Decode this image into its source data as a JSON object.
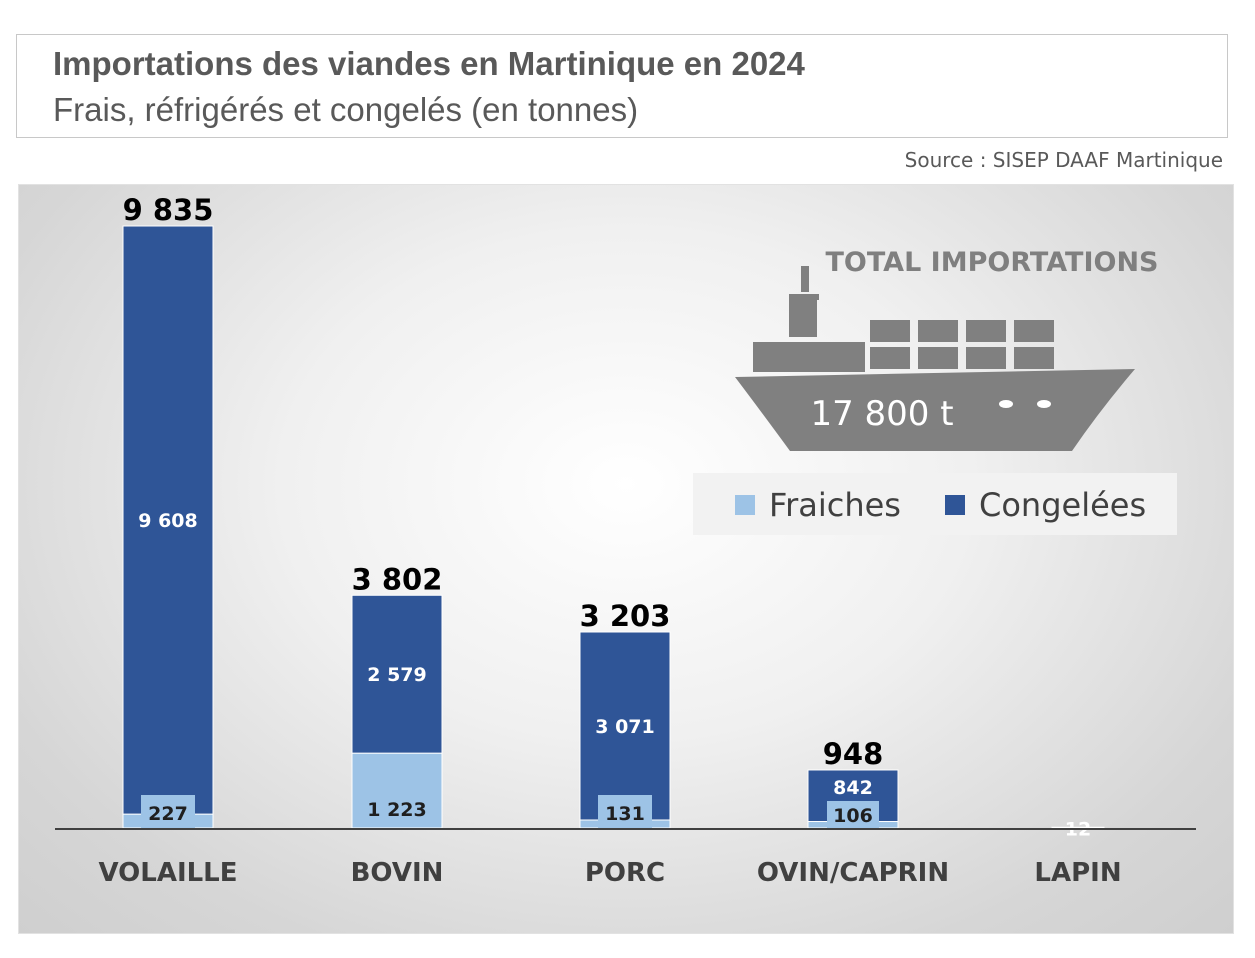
{
  "title": "Importations des viandes en Martinique en 2024",
  "subtitle": "Frais, réfrigérés et congelés (en tonnes)",
  "source": "Source : SISEP DAAF Martinique",
  "ship": {
    "heading": "TOTAL IMPORTATIONS",
    "total_label": "17 800 t",
    "icon": "cargo-ship-icon",
    "color": "#808080"
  },
  "colors": {
    "fraiches": "#9dc3e6",
    "congelees": "#2f5597"
  },
  "chart_data": {
    "type": "bar",
    "stacked": true,
    "title": "Importations des viandes en Martinique en 2024",
    "subtitle": "Frais, réfrigérés et congelés (en tonnes)",
    "unit": "tonnes",
    "categories": [
      "VOLAILLE",
      "BOVIN",
      "PORC",
      "OVIN/CAPRIN",
      "LAPIN"
    ],
    "series": [
      {
        "name": "Fraiches",
        "values": [
          227,
          1223,
          131,
          106,
          0
        ],
        "labels": [
          "227",
          "1 223",
          "131",
          "106",
          ""
        ]
      },
      {
        "name": "Congelées",
        "values": [
          9608,
          2579,
          3071,
          842,
          12
        ],
        "labels": [
          "9 608",
          "2 579",
          "3 071",
          "842",
          "12"
        ]
      }
    ],
    "totals": [
      9835,
      3802,
      3203,
      948,
      12
    ],
    "total_labels": [
      "9 835",
      "3 802",
      "3 203",
      "948",
      ""
    ],
    "legend_position": "right",
    "grid": false,
    "ylim": [
      0,
      10500
    ]
  }
}
